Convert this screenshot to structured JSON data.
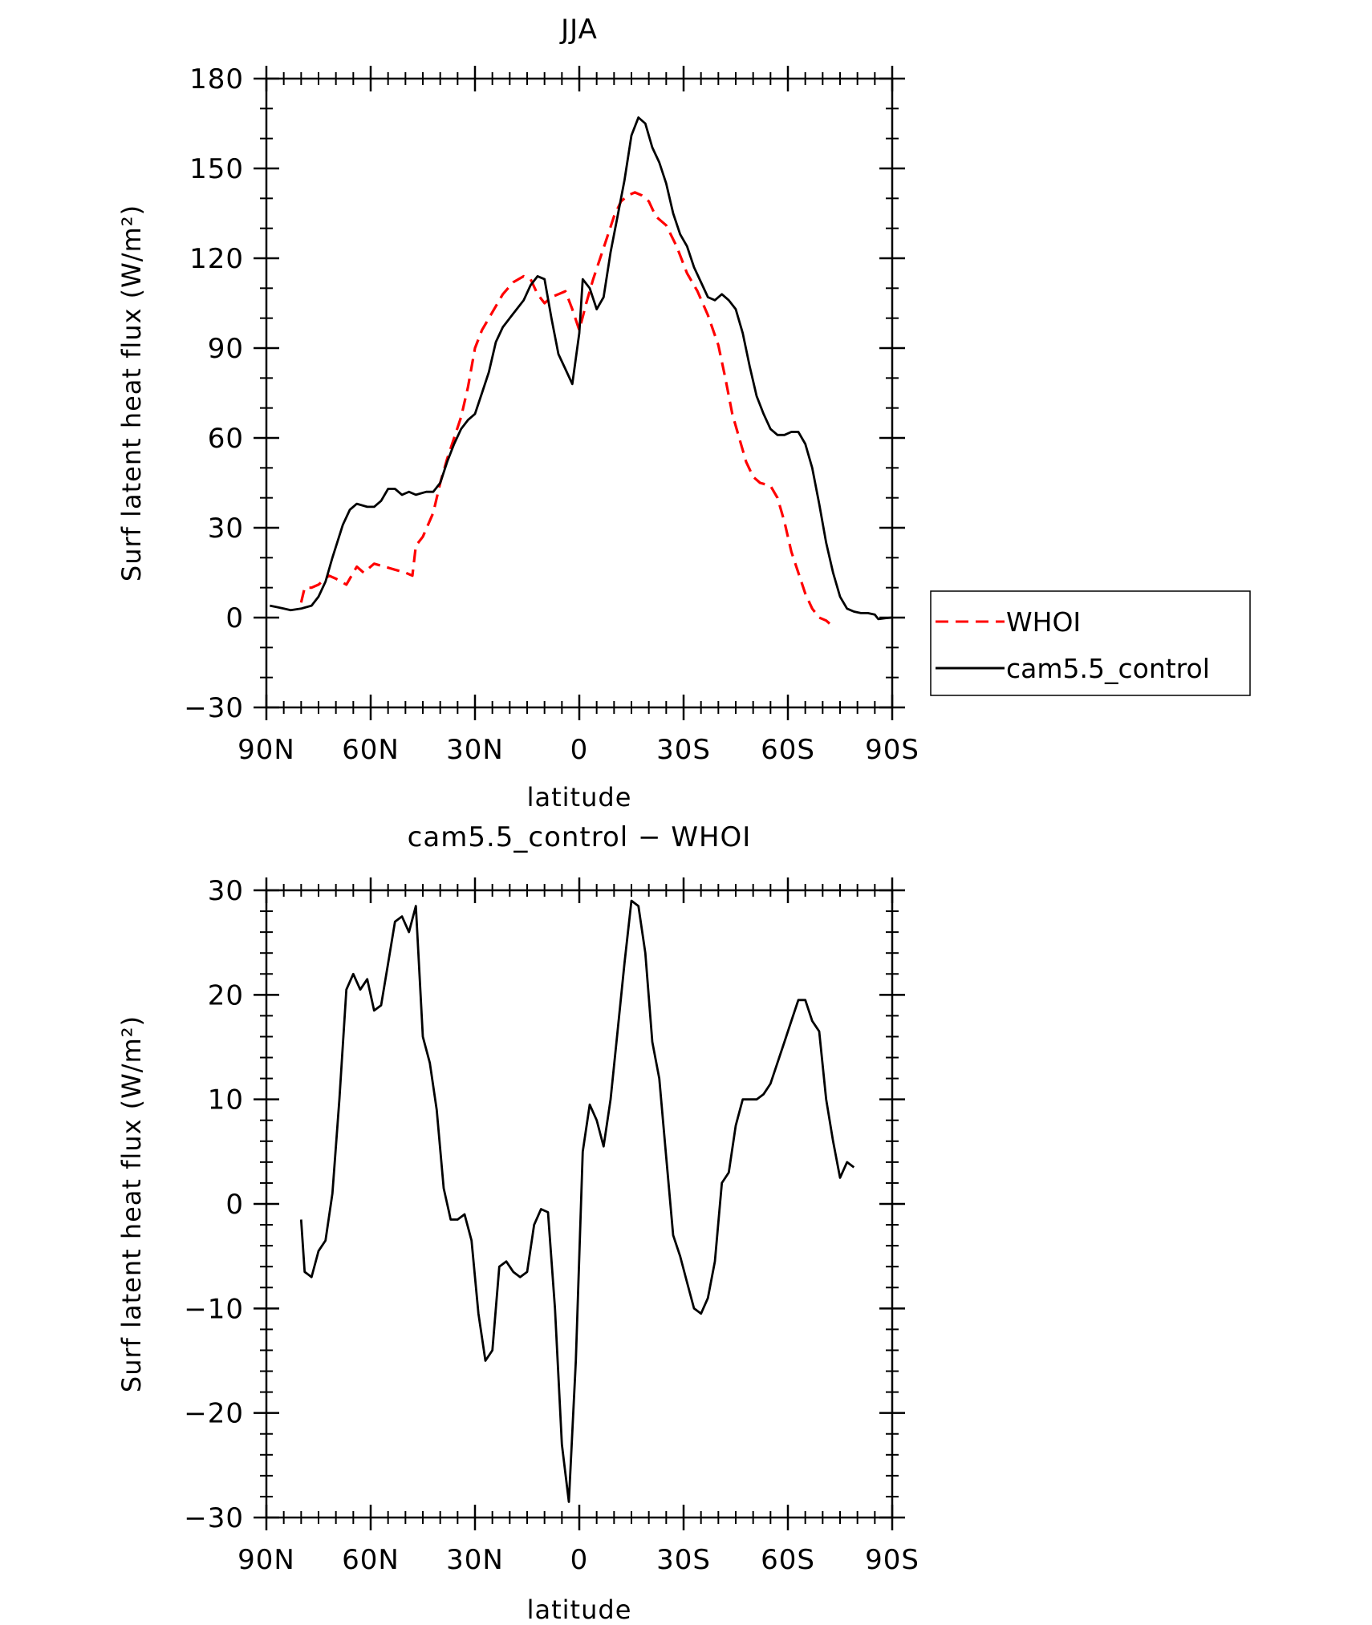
{
  "chart_data": [
    {
      "type": "line",
      "title": "JJA",
      "xlabel": "latitude",
      "ylabel": "Surf latent heat flux (W/m²)",
      "xlim": [
        90,
        -90
      ],
      "ylim": [
        -30,
        180
      ],
      "x_ticks": [
        {
          "value": 90,
          "label": "90N"
        },
        {
          "value": 60,
          "label": "60N"
        },
        {
          "value": 30,
          "label": "30N"
        },
        {
          "value": 0,
          "label": "0"
        },
        {
          "value": -30,
          "label": "30S"
        },
        {
          "value": -60,
          "label": "60S"
        },
        {
          "value": -90,
          "label": "90S"
        }
      ],
      "y_ticks": [
        {
          "value": 180,
          "label": "180"
        },
        {
          "value": 150,
          "label": "150"
        },
        {
          "value": 120,
          "label": "120"
        },
        {
          "value": 90,
          "label": "90"
        },
        {
          "value": 60,
          "label": "60"
        },
        {
          "value": 30,
          "label": "30"
        },
        {
          "value": 0,
          "label": "0"
        },
        {
          "value": -30,
          "label": "−30"
        }
      ],
      "legend": {
        "placement": "outside-right"
      },
      "series": [
        {
          "name": "WHOI",
          "color": "#ff0000",
          "dash": "dashed",
          "points": [
            [
              80,
              5
            ],
            [
              79,
              10
            ],
            [
              77,
              10
            ],
            [
              75,
              11
            ],
            [
              72,
              14
            ],
            [
              70,
              13
            ],
            [
              67,
              11
            ],
            [
              64,
              17
            ],
            [
              62,
              15
            ],
            [
              59,
              18
            ],
            [
              56,
              17
            ],
            [
              53,
              16
            ],
            [
              50,
              15
            ],
            [
              48,
              14
            ],
            [
              47,
              24
            ],
            [
              45,
              27
            ],
            [
              42,
              35
            ],
            [
              40,
              45
            ],
            [
              38,
              53
            ],
            [
              36,
              60
            ],
            [
              34,
              67
            ],
            [
              32,
              77
            ],
            [
              30,
              90
            ],
            [
              28,
              96
            ],
            [
              25,
              102
            ],
            [
              22,
              108
            ],
            [
              19,
              112
            ],
            [
              16,
              114
            ],
            [
              14,
              113
            ],
            [
              12,
              108
            ],
            [
              10,
              105
            ],
            [
              8,
              107
            ],
            [
              6,
              108
            ],
            [
              4,
              109
            ],
            [
              2,
              103
            ],
            [
              0,
              96
            ],
            [
              -2,
              105
            ],
            [
              -4,
              113
            ],
            [
              -6,
              120
            ],
            [
              -8,
              127
            ],
            [
              -10,
              134
            ],
            [
              -12,
              139
            ],
            [
              -14,
              141
            ],
            [
              -16,
              142
            ],
            [
              -18,
              141
            ],
            [
              -20,
              139
            ],
            [
              -22,
              134
            ],
            [
              -25,
              131
            ],
            [
              -28,
              124
            ],
            [
              -31,
              115
            ],
            [
              -34,
              109
            ],
            [
              -37,
              101
            ],
            [
              -40,
              91
            ],
            [
              -42,
              80
            ],
            [
              -44,
              68
            ],
            [
              -46,
              60
            ],
            [
              -48,
              52
            ],
            [
              -50,
              47
            ],
            [
              -52,
              45
            ],
            [
              -55,
              44
            ],
            [
              -57,
              40
            ],
            [
              -59,
              32
            ],
            [
              -61,
              22
            ],
            [
              -63,
              15
            ],
            [
              -65,
              8
            ],
            [
              -67,
              3
            ],
            [
              -69,
              0
            ],
            [
              -71,
              -1
            ],
            [
              -72,
              -2
            ]
          ]
        },
        {
          "name": "cam5.5_control",
          "color": "#000000",
          "dash": "solid",
          "points": [
            [
              89,
              4
            ],
            [
              87,
              3.5
            ],
            [
              85,
              3
            ],
            [
              83,
              2.5
            ],
            [
              80,
              3
            ],
            [
              77,
              4
            ],
            [
              75,
              7
            ],
            [
              73,
              12
            ],
            [
              71,
              20
            ],
            [
              68,
              31
            ],
            [
              66,
              36
            ],
            [
              64,
              38
            ],
            [
              61,
              37
            ],
            [
              59,
              37
            ],
            [
              57,
              39
            ],
            [
              55,
              43
            ],
            [
              53,
              43
            ],
            [
              51,
              41
            ],
            [
              49,
              42
            ],
            [
              47,
              41
            ],
            [
              44,
              42
            ],
            [
              42,
              42
            ],
            [
              40,
              45
            ],
            [
              38,
              52
            ],
            [
              36,
              58
            ],
            [
              34,
              63
            ],
            [
              32,
              66
            ],
            [
              30,
              68
            ],
            [
              28,
              75
            ],
            [
              26,
              82
            ],
            [
              24,
              92
            ],
            [
              22,
              97
            ],
            [
              20,
              100
            ],
            [
              18,
              103
            ],
            [
              16,
              106
            ],
            [
              14,
              111
            ],
            [
              12,
              114
            ],
            [
              10,
              113
            ],
            [
              8,
              100
            ],
            [
              6,
              88
            ],
            [
              4,
              83
            ],
            [
              2,
              78
            ],
            [
              0,
              95
            ],
            [
              -1,
              113
            ],
            [
              -3,
              110
            ],
            [
              -5,
              103
            ],
            [
              -7,
              107
            ],
            [
              -9,
              122
            ],
            [
              -11,
              134
            ],
            [
              -13,
              146
            ],
            [
              -15,
              161
            ],
            [
              -17,
              167
            ],
            [
              -19,
              165
            ],
            [
              -21,
              157
            ],
            [
              -23,
              152
            ],
            [
              -25,
              145
            ],
            [
              -27,
              135
            ],
            [
              -29,
              128
            ],
            [
              -31,
              124
            ],
            [
              -33,
              117
            ],
            [
              -35,
              112
            ],
            [
              -37,
              107
            ],
            [
              -39,
              106
            ],
            [
              -41,
              108
            ],
            [
              -43,
              106
            ],
            [
              -45,
              103
            ],
            [
              -47,
              95
            ],
            [
              -49,
              84
            ],
            [
              -51,
              74
            ],
            [
              -53,
              68
            ],
            [
              -55,
              63
            ],
            [
              -57,
              61
            ],
            [
              -59,
              61
            ],
            [
              -61,
              62
            ],
            [
              -63,
              62
            ],
            [
              -65,
              58
            ],
            [
              -67,
              50
            ],
            [
              -69,
              38
            ],
            [
              -71,
              25
            ],
            [
              -73,
              15
            ],
            [
              -75,
              7
            ],
            [
              -77,
              3
            ],
            [
              -79,
              2
            ],
            [
              -81,
              1.5
            ],
            [
              -83,
              1.5
            ],
            [
              -85,
              1
            ],
            [
              -86,
              -0.5
            ],
            [
              -88,
              -0.2
            ],
            [
              -90,
              0
            ]
          ]
        }
      ]
    },
    {
      "type": "line",
      "title": "cam5.5_control − WHOI",
      "xlabel": "latitude",
      "ylabel": "Surf latent heat flux (W/m²)",
      "xlim": [
        90,
        -90
      ],
      "ylim": [
        -30,
        30
      ],
      "x_ticks": [
        {
          "value": 90,
          "label": "90N"
        },
        {
          "value": 60,
          "label": "60N"
        },
        {
          "value": 30,
          "label": "30N"
        },
        {
          "value": 0,
          "label": "0"
        },
        {
          "value": -30,
          "label": "30S"
        },
        {
          "value": -60,
          "label": "60S"
        },
        {
          "value": -90,
          "label": "90S"
        }
      ],
      "y_ticks": [
        {
          "value": 30,
          "label": "30"
        },
        {
          "value": 20,
          "label": "20"
        },
        {
          "value": 10,
          "label": "10"
        },
        {
          "value": 0,
          "label": "0"
        },
        {
          "value": -10,
          "label": "−10"
        },
        {
          "value": -20,
          "label": "−20"
        },
        {
          "value": -30,
          "label": "−30"
        }
      ],
      "series": [
        {
          "color": "#000000",
          "dash": "solid",
          "points": [
            [
              80,
              -1.5
            ],
            [
              79,
              -6.5
            ],
            [
              77,
              -7
            ],
            [
              75,
              -4.5
            ],
            [
              73,
              -3.5
            ],
            [
              71,
              1
            ],
            [
              69,
              10
            ],
            [
              67,
              20.5
            ],
            [
              65,
              22
            ],
            [
              63,
              20.5
            ],
            [
              61,
              21.5
            ],
            [
              59,
              18.5
            ],
            [
              57,
              19
            ],
            [
              55,
              23
            ],
            [
              53,
              27
            ],
            [
              51,
              27.5
            ],
            [
              49,
              26
            ],
            [
              47,
              28.5
            ],
            [
              45,
              16
            ],
            [
              43,
              13.5
            ],
            [
              41,
              9
            ],
            [
              39,
              1.5
            ],
            [
              37,
              -1.5
            ],
            [
              35,
              -1.5
            ],
            [
              33,
              -1
            ],
            [
              31,
              -3.5
            ],
            [
              29,
              -10.5
            ],
            [
              27,
              -15
            ],
            [
              25,
              -14
            ],
            [
              23,
              -6
            ],
            [
              21,
              -5.5
            ],
            [
              19,
              -6.5
            ],
            [
              17,
              -7
            ],
            [
              15,
              -6.5
            ],
            [
              13,
              -2
            ],
            [
              11,
              -0.5
            ],
            [
              9,
              -0.8
            ],
            [
              7,
              -10
            ],
            [
              5,
              -23
            ],
            [
              3,
              -28.5
            ],
            [
              1,
              -15
            ],
            [
              -1,
              5
            ],
            [
              -3,
              9.5
            ],
            [
              -5,
              8
            ],
            [
              -7,
              5.5
            ],
            [
              -9,
              10
            ],
            [
              -11,
              16.5
            ],
            [
              -13,
              23
            ],
            [
              -15,
              29
            ],
            [
              -17,
              28.5
            ],
            [
              -19,
              24
            ],
            [
              -21,
              15.5
            ],
            [
              -23,
              12
            ],
            [
              -25,
              4.5
            ],
            [
              -27,
              -3
            ],
            [
              -29,
              -5
            ],
            [
              -31,
              -7.5
            ],
            [
              -33,
              -10
            ],
            [
              -35,
              -10.5
            ],
            [
              -37,
              -9
            ],
            [
              -39,
              -5.5
            ],
            [
              -41,
              2
            ],
            [
              -43,
              3
            ],
            [
              -45,
              7.5
            ],
            [
              -47,
              10
            ],
            [
              -49,
              10
            ],
            [
              -51,
              10
            ],
            [
              -53,
              10.5
            ],
            [
              -55,
              11.5
            ],
            [
              -57,
              13.5
            ],
            [
              -59,
              15.5
            ],
            [
              -61,
              17.5
            ],
            [
              -63,
              19.5
            ],
            [
              -65,
              19.5
            ],
            [
              -67,
              17.5
            ],
            [
              -69,
              16.5
            ],
            [
              -71,
              10
            ],
            [
              -73,
              6
            ],
            [
              -75,
              2.5
            ],
            [
              -77,
              4
            ],
            [
              -79,
              3.5
            ]
          ]
        }
      ]
    }
  ]
}
